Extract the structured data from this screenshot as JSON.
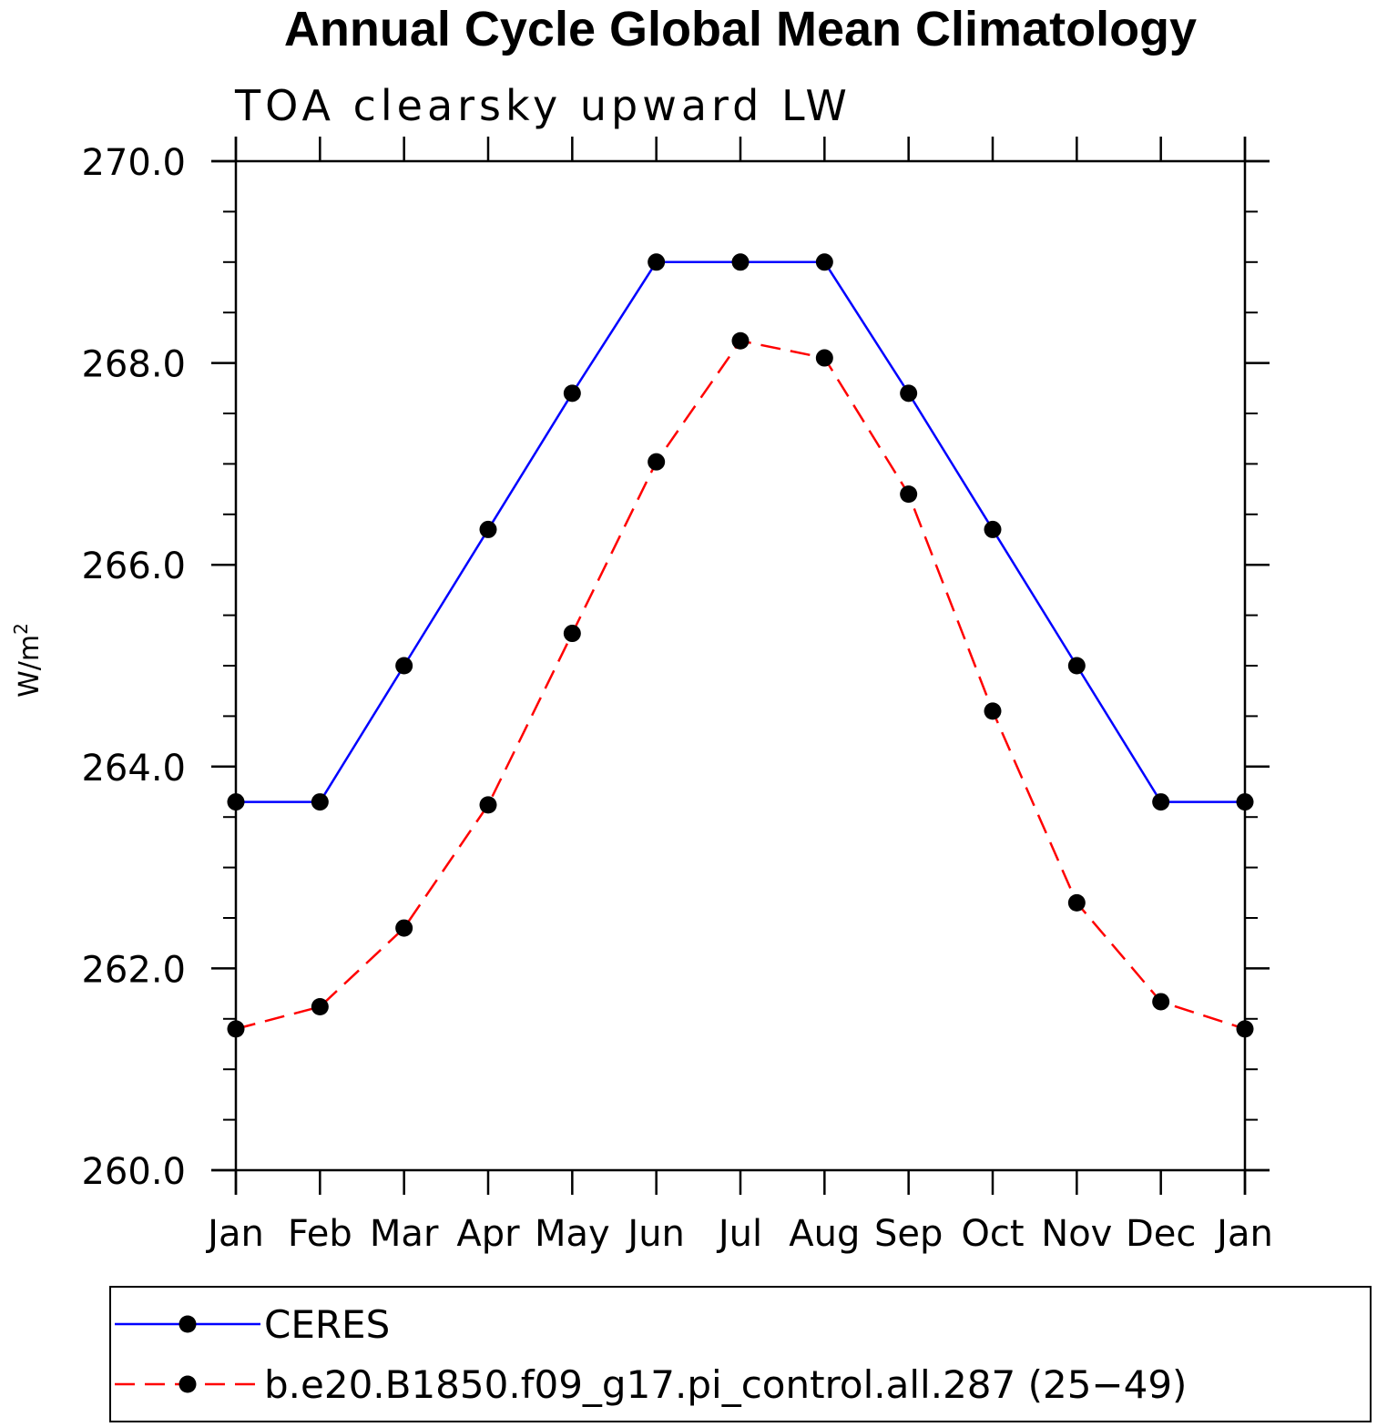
{
  "chart_data": {
    "type": "line",
    "title": "Annual Cycle Global Mean Climatology",
    "subtitle": "TOA clearsky upward LW",
    "xlabel": "",
    "ylabel": "W/m",
    "ylabel_superscript": "2",
    "categories": [
      "Jan",
      "Feb",
      "Mar",
      "Apr",
      "May",
      "Jun",
      "Jul",
      "Aug",
      "Sep",
      "Oct",
      "Nov",
      "Dec",
      "Jan"
    ],
    "ylim": [
      260.0,
      270.0
    ],
    "yticks": [
      "260.0",
      "262.0",
      "264.0",
      "266.0",
      "268.0",
      "270.0"
    ],
    "yminor_step": 0.5,
    "grid": false,
    "legend_position": "bottom",
    "series": [
      {
        "name": "CERES",
        "color": "#0000ff",
        "line_style": "solid",
        "marker": "filled-circle",
        "values": [
          263.65,
          263.65,
          265.0,
          266.35,
          267.7,
          269.0,
          269.0,
          269.0,
          267.7,
          266.35,
          265.0,
          263.65,
          263.65
        ]
      },
      {
        "name": "b.e20.B1850.f09_g17.pi_control.all.287 (25−49)",
        "color": "#ff0000",
        "line_style": "dashed",
        "marker": "filled-circle",
        "values": [
          261.4,
          261.62,
          262.4,
          263.62,
          265.32,
          267.02,
          268.22,
          268.05,
          266.7,
          264.55,
          262.65,
          261.67,
          261.4
        ]
      }
    ]
  }
}
